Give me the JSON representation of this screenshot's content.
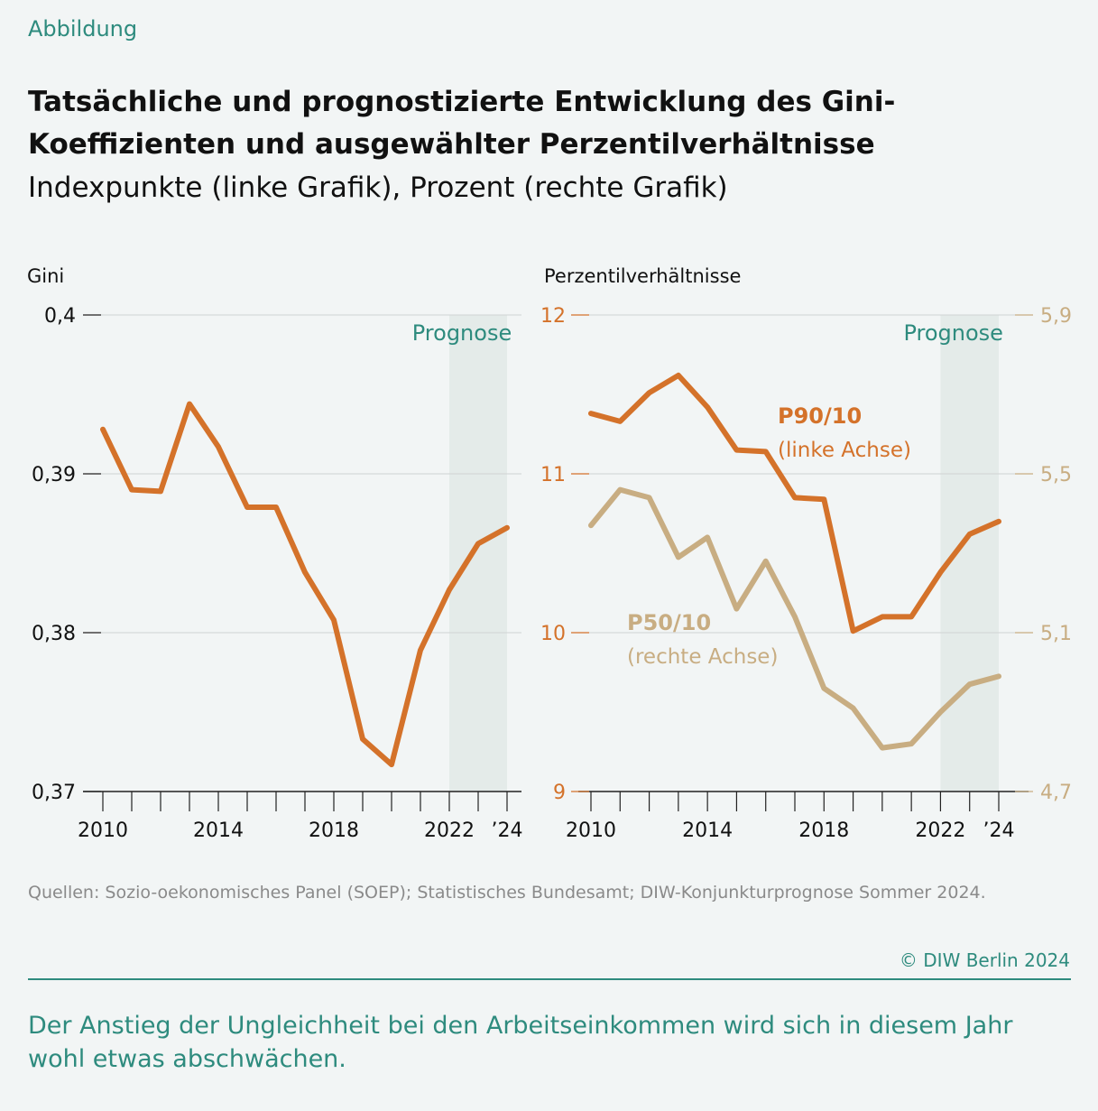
{
  "header": {
    "kicker": "Abbildung",
    "title": "Tatsächliche und prognostizierte Entwicklung des Gini-Koeffizienten und ausgewählter Perzentilverhältnisse",
    "subtitle": "Indexpunkte (linke Grafik), Prozent (rechte Grafik)"
  },
  "footer": {
    "source": "Quellen: Sozio-oekonomisches Panel (SOEP); Statistisches Bundesamt; DIW-Konjunkturprognose Sommer 2024.",
    "copyright": "© DIW Berlin 2024",
    "caption": "Der Anstieg der Ungleichheit bei den Arbeitseinkommen wird sich in diesem Jahr wohl etwas abschwächen."
  },
  "colors": {
    "orange": "#d4722a",
    "tan": "#c8ad82",
    "teal": "#2e8b7e",
    "forecast_band": "#e4ebe9",
    "grid": "#cfd3d3"
  },
  "chart_data": [
    {
      "type": "line",
      "ylabel": "Gini",
      "annotation": "Prognose",
      "forecast_range": [
        2022,
        2024
      ],
      "x": [
        2010,
        2011,
        2012,
        2013,
        2014,
        2015,
        2016,
        2017,
        2018,
        2019,
        2020,
        2021,
        2022,
        2023,
        2024
      ],
      "xticks": [
        "2010",
        "2014",
        "2018",
        "2022",
        "’24"
      ],
      "xtick_values": [
        2010,
        2014,
        2018,
        2022,
        2024
      ],
      "ylim": [
        0.37,
        0.4
      ],
      "yticks": [
        "0,37",
        "0,38",
        "0,39",
        "0,4"
      ],
      "ytick_values": [
        0.37,
        0.38,
        0.39,
        0.4
      ],
      "grid": true,
      "series": [
        {
          "values": [
            0.3928,
            0.389,
            0.3889,
            0.3944,
            0.3917,
            0.3879,
            0.3879,
            0.3838,
            0.3808,
            0.3733,
            0.3717,
            0.3789,
            0.3827,
            0.3856,
            0.3866
          ]
        }
      ]
    },
    {
      "type": "line",
      "ylabel": "Perzentilverhältnisse",
      "annotation": "Prognose",
      "forecast_range": [
        2022,
        2024
      ],
      "x": [
        2010,
        2011,
        2012,
        2013,
        2014,
        2015,
        2016,
        2017,
        2018,
        2019,
        2020,
        2021,
        2022,
        2023,
        2024
      ],
      "xticks": [
        "2010",
        "2014",
        "2018",
        "2022",
        "’24"
      ],
      "xtick_values": [
        2010,
        2014,
        2018,
        2022,
        2024
      ],
      "ylim_left": [
        9,
        12
      ],
      "yticks_left": [
        "9",
        "10",
        "11",
        "12"
      ],
      "ytick_left_values": [
        9,
        10,
        11,
        12
      ],
      "ylim_right": [
        4.7,
        5.9
      ],
      "yticks_right": [
        "4,7",
        "5,1",
        "5,5",
        "5,9"
      ],
      "ytick_right_values": [
        4.7,
        5.1,
        5.5,
        5.9
      ],
      "grid": true,
      "series": [
        {
          "name": "P90/10",
          "axis_label": "(linke Achse)",
          "axis": "left",
          "values": [
            11.38,
            11.33,
            11.51,
            11.62,
            11.42,
            11.15,
            11.14,
            10.85,
            10.84,
            10.01,
            10.1,
            10.1,
            10.38,
            10.62,
            10.7
          ]
        },
        {
          "name": "P50/10",
          "axis_label": "(rechte Achse)",
          "axis": "right",
          "values": [
            5.37,
            5.46,
            5.44,
            5.29,
            5.34,
            5.16,
            5.28,
            5.14,
            4.96,
            4.91,
            4.81,
            4.82,
            4.9,
            4.97,
            4.99
          ]
        }
      ]
    }
  ]
}
